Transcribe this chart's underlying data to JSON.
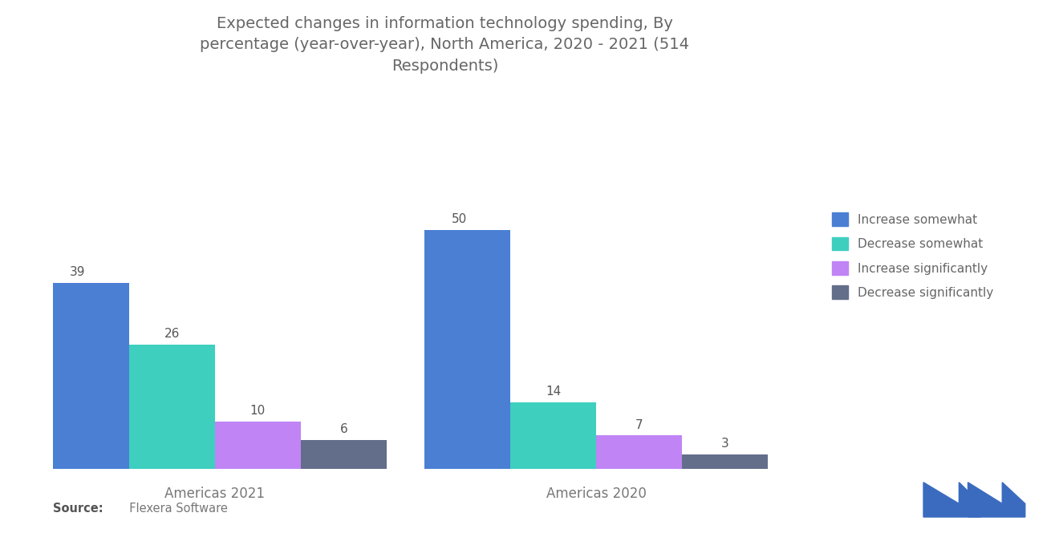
{
  "title": "Expected changes in information technology spending, By\npercentage (year-over-year), North America, 2020 - 2021 (514\nRespondents)",
  "groups": [
    "Americas 2021",
    "Americas 2020"
  ],
  "categories": [
    "Increase somewhat",
    "Decrease somewhat",
    "Increase significantly",
    "Decrease significantly"
  ],
  "values": {
    "Americas 2021": [
      39,
      26,
      10,
      6
    ],
    "Americas 2020": [
      50,
      14,
      7,
      3
    ]
  },
  "colors": [
    "#4a7fd4",
    "#3ecfbf",
    "#c084f5",
    "#636e8a"
  ],
  "source_bold": "Source:",
  "source_text": "  Flexera Software",
  "background_color": "#ffffff",
  "title_color": "#666666",
  "label_color": "#777777",
  "bar_width": 0.09,
  "ylim": [
    0,
    58
  ],
  "legend_fontsize": 11,
  "title_fontsize": 14,
  "tick_fontsize": 12,
  "value_fontsize": 11
}
